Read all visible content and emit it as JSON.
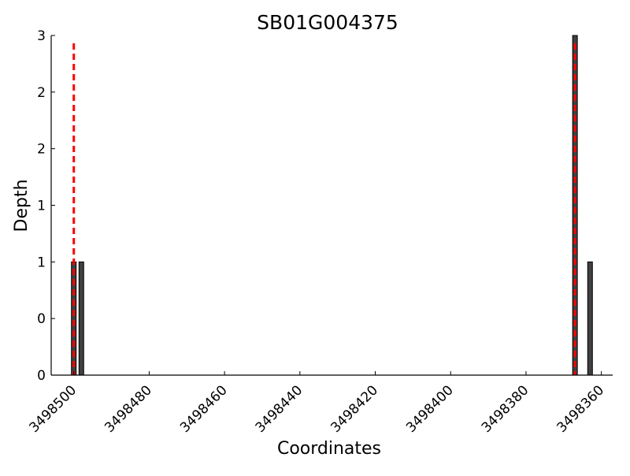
{
  "chart_data": {
    "type": "bar",
    "title": "SB01G004375",
    "xlabel": "Coordinates",
    "ylabel": "Depth",
    "x_axis_reversed": true,
    "xlim": [
      3498506,
      3498357
    ],
    "x_ticks": [
      3498500,
      3498480,
      3498460,
      3498440,
      3498420,
      3498400,
      3498380,
      3498360
    ],
    "x_tick_labels": [
      "3498500",
      "3498480",
      "3498460",
      "3498440",
      "3498420",
      "3498400",
      "3498380",
      "3498360"
    ],
    "ylim": [
      0,
      3
    ],
    "y_ticks": [
      0,
      0.5,
      1,
      1.5,
      2,
      2.5,
      3
    ],
    "y_tick_labels": [
      "0",
      "0",
      "1",
      "1",
      "2",
      "2",
      "3"
    ],
    "bars": [
      {
        "x": 3498500,
        "depth": 1
      },
      {
        "x": 3498498,
        "depth": 1
      },
      {
        "x": 3498367,
        "depth": 3
      },
      {
        "x": 3498363,
        "depth": 1
      }
    ],
    "bar_color": "#404040",
    "marker_lines": [
      {
        "x": 3498500,
        "color": "#ff0000",
        "style": "dashed"
      },
      {
        "x": 3498367,
        "color": "#ff0000",
        "style": "dashed"
      }
    ],
    "grid": false
  }
}
